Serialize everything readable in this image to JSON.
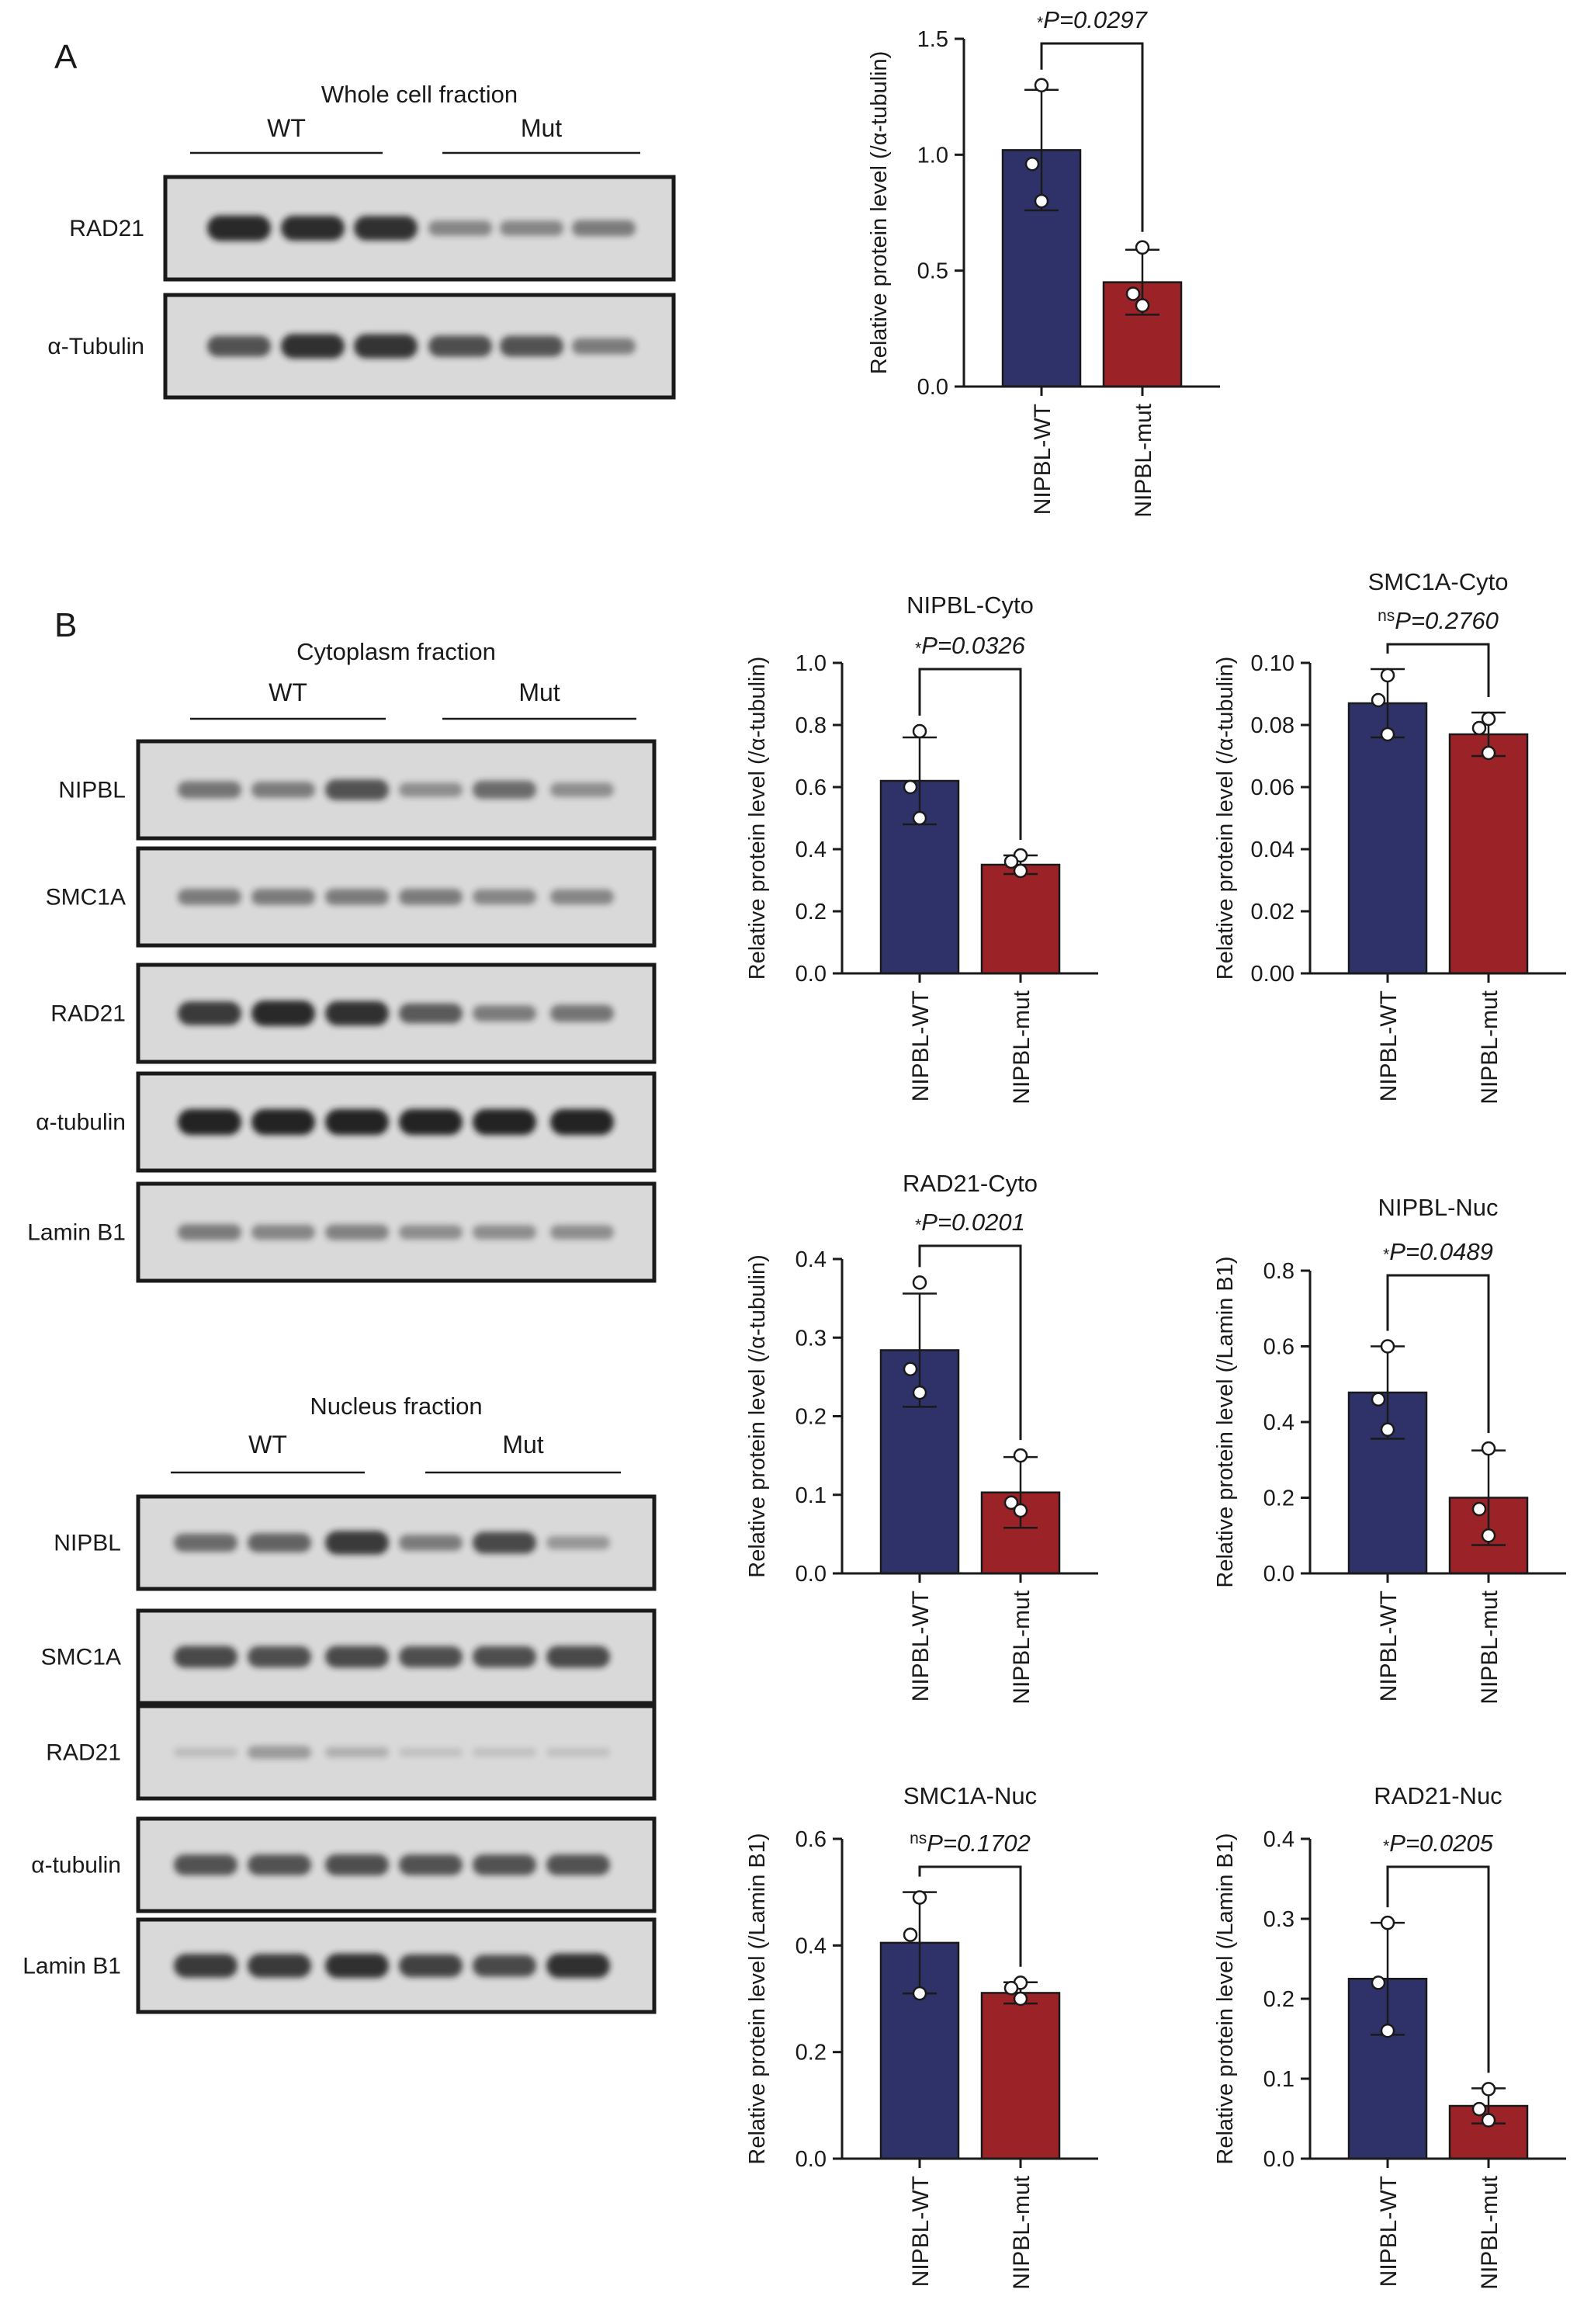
{
  "panel_labels": [
    "A",
    "B"
  ],
  "colors": {
    "wt": "#2e3268",
    "mut": "#9b2226",
    "axis": "#1a1a1a",
    "blot_bg": "#d9d9d9",
    "band": "#1e1e1e"
  },
  "blots": [
    {
      "title": "Whole cell fraction",
      "groups": [
        "WT",
        "Mut"
      ],
      "rows": [
        {
          "label": "RAD21",
          "intensities": [
            0.95,
            0.92,
            0.9,
            0.4,
            0.4,
            0.45
          ]
        },
        {
          "label": "α-Tubulin",
          "intensities": [
            0.7,
            0.9,
            0.88,
            0.72,
            0.7,
            0.45
          ]
        }
      ]
    },
    {
      "title": "Cytoplasm fraction",
      "groups": [
        "WT",
        "Mut"
      ],
      "rows": [
        {
          "label": "NIPBL",
          "intensities": [
            0.5,
            0.45,
            0.7,
            0.35,
            0.55,
            0.35
          ]
        },
        {
          "label": "SMC1A",
          "intensities": [
            0.45,
            0.45,
            0.45,
            0.45,
            0.4,
            0.4
          ]
        },
        {
          "label": "RAD21",
          "intensities": [
            0.85,
            0.95,
            0.9,
            0.65,
            0.45,
            0.5
          ]
        },
        {
          "label": "α-tubulin",
          "intensities": [
            0.98,
            0.98,
            0.98,
            0.98,
            0.98,
            0.98
          ]
        },
        {
          "label": "Lamin B1",
          "intensities": [
            0.45,
            0.4,
            0.42,
            0.35,
            0.35,
            0.35
          ]
        }
      ]
    },
    {
      "title": "Nucleus fraction",
      "groups": [
        "WT",
        "Mut"
      ],
      "rows": [
        {
          "label": "NIPBL",
          "intensities": [
            0.55,
            0.6,
            0.85,
            0.45,
            0.75,
            0.3
          ]
        },
        {
          "label": "SMC1A",
          "intensities": [
            0.75,
            0.72,
            0.75,
            0.72,
            0.72,
            0.75
          ]
        },
        {
          "label": "RAD21",
          "intensities": [
            0.08,
            0.28,
            0.15,
            0.05,
            0.05,
            0.05
          ]
        },
        {
          "label": "α-tubulin",
          "intensities": [
            0.7,
            0.7,
            0.72,
            0.7,
            0.7,
            0.7
          ]
        },
        {
          "label": "Lamin B1",
          "intensities": [
            0.85,
            0.85,
            0.9,
            0.8,
            0.75,
            0.9
          ]
        }
      ]
    }
  ],
  "chart_data": [
    {
      "type": "bar",
      "title": "",
      "categories": [
        "NIPBL-WT",
        "NIPBL-mut"
      ],
      "ylabel": "Relative protein level (/α-tubulin)",
      "ylim": [
        0,
        1.5
      ],
      "yticks": [
        "0.0",
        "0.5",
        "1.0",
        "1.5"
      ],
      "values": [
        1.02,
        0.45
      ],
      "errors": [
        0.26,
        0.14
      ],
      "points": [
        [
          1.3,
          0.96,
          0.8
        ],
        [
          0.6,
          0.4,
          0.35
        ]
      ],
      "p_prefix": "*",
      "p_text": "P=0.0297"
    },
    {
      "type": "bar",
      "title": "NIPBL-Cyto",
      "categories": [
        "NIPBL-WT",
        "NIPBL-mut"
      ],
      "ylabel": "Relative protein level (/α-tubulin)",
      "ylim": [
        0,
        1.0
      ],
      "yticks": [
        "0.0",
        "0.2",
        "0.4",
        "0.6",
        "0.8",
        "1.0"
      ],
      "values": [
        0.62,
        0.35
      ],
      "errors": [
        0.14,
        0.03
      ],
      "points": [
        [
          0.78,
          0.6,
          0.5
        ],
        [
          0.38,
          0.36,
          0.33
        ]
      ],
      "p_prefix": "*",
      "p_text": "P=0.0326"
    },
    {
      "type": "bar",
      "title": "SMC1A-Cyto",
      "categories": [
        "NIPBL-WT",
        "NIPBL-mut"
      ],
      "ylabel": "Relative protein level (/α-tubulin)",
      "ylim": [
        0,
        0.1
      ],
      "yticks": [
        "0.00",
        "0.02",
        "0.04",
        "0.06",
        "0.08",
        "0.10"
      ],
      "values": [
        0.087,
        0.077
      ],
      "errors": [
        0.011,
        0.007
      ],
      "points": [
        [
          0.096,
          0.088,
          0.077
        ],
        [
          0.082,
          0.079,
          0.071
        ]
      ],
      "p_prefix": "ns",
      "p_text": "P=0.2760"
    },
    {
      "type": "bar",
      "title": "RAD21-Cyto",
      "categories": [
        "NIPBL-WT",
        "NIPBL-mut"
      ],
      "ylabel": "Relative protein level (/α-tubulin)",
      "ylim": [
        0,
        0.4
      ],
      "yticks": [
        "0.0",
        "0.1",
        "0.2",
        "0.3",
        "0.4"
      ],
      "values": [
        0.284,
        0.103
      ],
      "errors": [
        0.072,
        0.045
      ],
      "points": [
        [
          0.37,
          0.26,
          0.23
        ],
        [
          0.15,
          0.09,
          0.08
        ]
      ],
      "p_prefix": "*",
      "p_text": "P=0.0201"
    },
    {
      "type": "bar",
      "title": "NIPBL-Nuc",
      "categories": [
        "NIPBL-WT",
        "NIPBL-mut"
      ],
      "ylabel": "Relative protein level (/Lamin B1)",
      "ylim": [
        0,
        0.8
      ],
      "yticks": [
        "0.0",
        "0.2",
        "0.4",
        "0.6",
        "0.8"
      ],
      "values": [
        0.478,
        0.2
      ],
      "errors": [
        0.122,
        0.125
      ],
      "points": [
        [
          0.6,
          0.46,
          0.38
        ],
        [
          0.33,
          0.17,
          0.1
        ]
      ],
      "p_prefix": "*",
      "p_text": "P=0.0489"
    },
    {
      "type": "bar",
      "title": "SMC1A-Nuc",
      "categories": [
        "NIPBL-WT",
        "NIPBL-mut"
      ],
      "ylabel": "Relative protein level (/Lamin B1)",
      "ylim": [
        0,
        0.6
      ],
      "yticks": [
        "0.0",
        "0.2",
        "0.4",
        "0.6"
      ],
      "values": [
        0.405,
        0.311
      ],
      "errors": [
        0.095,
        0.02
      ],
      "points": [
        [
          0.49,
          0.42,
          0.31
        ],
        [
          0.33,
          0.32,
          0.3
        ]
      ],
      "p_prefix": "ns",
      "p_text": "P=0.1702"
    },
    {
      "type": "bar",
      "title": "RAD21-Nuc",
      "categories": [
        "NIPBL-WT",
        "NIPBL-mut"
      ],
      "ylabel": "Relative protein level (/Lamin B1)",
      "ylim": [
        0,
        0.4
      ],
      "yticks": [
        "0.0",
        "0.1",
        "0.2",
        "0.3",
        "0.4"
      ],
      "values": [
        0.225,
        0.066
      ],
      "errors": [
        0.07,
        0.022
      ],
      "points": [
        [
          0.295,
          0.22,
          0.16
        ],
        [
          0.087,
          0.062,
          0.048
        ]
      ],
      "p_prefix": "*",
      "p_text": "P=0.0205"
    }
  ]
}
